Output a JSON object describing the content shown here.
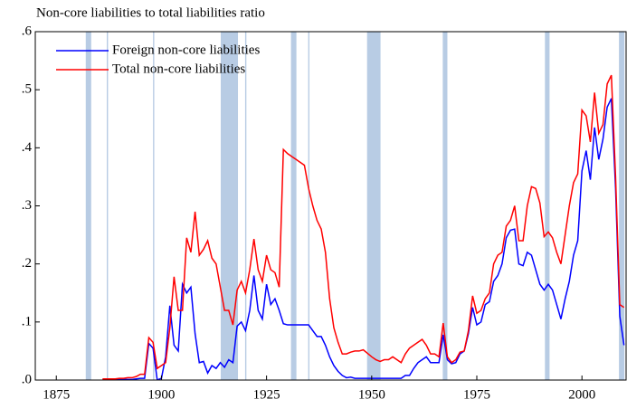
{
  "chart_data": {
    "type": "line",
    "title": "Non-core liabilities to total liabilities ratio",
    "x": [
      1886,
      1887,
      1888,
      1889,
      1890,
      1891,
      1892,
      1893,
      1894,
      1895,
      1896,
      1897,
      1898,
      1899,
      1900,
      1901,
      1902,
      1903,
      1904,
      1905,
      1906,
      1907,
      1908,
      1909,
      1910,
      1911,
      1912,
      1913,
      1914,
      1915,
      1916,
      1917,
      1918,
      1919,
      1920,
      1921,
      1922,
      1923,
      1924,
      1925,
      1926,
      1927,
      1928,
      1929,
      1930,
      1931,
      1932,
      1933,
      1934,
      1935,
      1936,
      1937,
      1938,
      1939,
      1940,
      1941,
      1942,
      1943,
      1944,
      1945,
      1946,
      1947,
      1948,
      1949,
      1950,
      1951,
      1952,
      1953,
      1954,
      1955,
      1956,
      1957,
      1958,
      1959,
      1960,
      1961,
      1962,
      1963,
      1964,
      1965,
      1966,
      1967,
      1968,
      1969,
      1970,
      1971,
      1972,
      1973,
      1974,
      1975,
      1976,
      1977,
      1978,
      1979,
      1980,
      1981,
      1982,
      1983,
      1984,
      1985,
      1986,
      1987,
      1988,
      1989,
      1990,
      1991,
      1992,
      1993,
      1994,
      1995,
      1996,
      1997,
      1998,
      1999,
      2000,
      2001,
      2002,
      2003,
      2004,
      2005,
      2006,
      2007,
      2008,
      2009,
      2010
    ],
    "series": [
      {
        "name": "Foreign non-core liabilities",
        "color": "#0000ff",
        "values": [
          0.001,
          0.001,
          0.001,
          0.001,
          0.001,
          0.001,
          0.001,
          0.001,
          0.002,
          0.003,
          0.003,
          0.063,
          0.055,
          0.0,
          0.003,
          0.04,
          0.128,
          0.06,
          0.05,
          0.165,
          0.15,
          0.16,
          0.08,
          0.03,
          0.032,
          0.012,
          0.025,
          0.02,
          0.03,
          0.022,
          0.035,
          0.03,
          0.093,
          0.1,
          0.085,
          0.12,
          0.18,
          0.12,
          0.105,
          0.165,
          0.13,
          0.14,
          0.12,
          0.097,
          0.095,
          0.095,
          0.095,
          0.095,
          0.095,
          0.095,
          0.085,
          0.075,
          0.075,
          0.06,
          0.04,
          0.025,
          0.015,
          0.008,
          0.004,
          0.005,
          0.003,
          0.003,
          0.003,
          0.003,
          0.003,
          0.003,
          0.003,
          0.003,
          0.003,
          0.003,
          0.003,
          0.003,
          0.008,
          0.008,
          0.02,
          0.03,
          0.035,
          0.04,
          0.03,
          0.03,
          0.03,
          0.078,
          0.035,
          0.028,
          0.03,
          0.045,
          0.05,
          0.08,
          0.125,
          0.095,
          0.1,
          0.13,
          0.135,
          0.17,
          0.18,
          0.2,
          0.245,
          0.258,
          0.26,
          0.2,
          0.197,
          0.22,
          0.215,
          0.19,
          0.165,
          0.155,
          0.165,
          0.155,
          0.13,
          0.105,
          0.14,
          0.17,
          0.215,
          0.24,
          0.36,
          0.395,
          0.345,
          0.435,
          0.38,
          0.415,
          0.47,
          0.485,
          0.33,
          0.11,
          0.06
        ]
      },
      {
        "name": "Total non-core liabilities",
        "color": "#ff0000",
        "values": [
          0.002,
          0.002,
          0.002,
          0.002,
          0.003,
          0.003,
          0.004,
          0.004,
          0.006,
          0.01,
          0.01,
          0.073,
          0.065,
          0.02,
          0.025,
          0.03,
          0.09,
          0.178,
          0.12,
          0.12,
          0.245,
          0.22,
          0.29,
          0.215,
          0.225,
          0.24,
          0.21,
          0.2,
          0.16,
          0.12,
          0.12,
          0.095,
          0.155,
          0.17,
          0.15,
          0.19,
          0.243,
          0.19,
          0.17,
          0.215,
          0.19,
          0.185,
          0.16,
          0.397,
          0.39,
          0.385,
          0.38,
          0.375,
          0.37,
          0.33,
          0.3,
          0.275,
          0.26,
          0.22,
          0.14,
          0.09,
          0.065,
          0.045,
          0.045,
          0.048,
          0.05,
          0.05,
          0.052,
          0.046,
          0.04,
          0.035,
          0.032,
          0.035,
          0.035,
          0.04,
          0.035,
          0.03,
          0.045,
          0.055,
          0.06,
          0.065,
          0.07,
          0.06,
          0.045,
          0.045,
          0.04,
          0.098,
          0.04,
          0.03,
          0.035,
          0.048,
          0.05,
          0.085,
          0.145,
          0.115,
          0.12,
          0.14,
          0.15,
          0.2,
          0.215,
          0.22,
          0.265,
          0.275,
          0.3,
          0.24,
          0.24,
          0.3,
          0.333,
          0.33,
          0.305,
          0.247,
          0.255,
          0.245,
          0.22,
          0.2,
          0.25,
          0.3,
          0.34,
          0.355,
          0.465,
          0.455,
          0.41,
          0.495,
          0.425,
          0.44,
          0.51,
          0.525,
          0.35,
          0.13,
          0.125
        ]
      }
    ],
    "shaded_periods": [
      [
        1882,
        1883.3
      ],
      [
        1887,
        1887.3
      ],
      [
        1898,
        1898.3
      ],
      [
        1914.1,
        1918.2
      ],
      [
        1919.9,
        1920.2
      ],
      [
        1930.8,
        1932.1
      ],
      [
        1934.9,
        1935.2
      ],
      [
        1948.9,
        1952.1
      ],
      [
        1966.9,
        1968
      ],
      [
        1991.2,
        1992.3
      ],
      [
        2008.8,
        2010.1
      ]
    ],
    "shade_color": "#b8cce4",
    "xlim": [
      1870,
      2010.5
    ],
    "xticks": [
      1875,
      1900,
      1925,
      1950,
      1975,
      2000
    ],
    "ylim": [
      0,
      0.6
    ],
    "yticks": [
      {
        "value": 0,
        "label": ".0"
      },
      {
        "value": 0.1,
        "label": ".1"
      },
      {
        "value": 0.2,
        "label": ".2"
      },
      {
        "value": 0.3,
        "label": ".3"
      },
      {
        "value": 0.4,
        "label": ".4"
      },
      {
        "value": 0.5,
        "label": ".5"
      },
      {
        "value": 0.6,
        "label": ".6"
      }
    ],
    "legend": "top-left"
  }
}
